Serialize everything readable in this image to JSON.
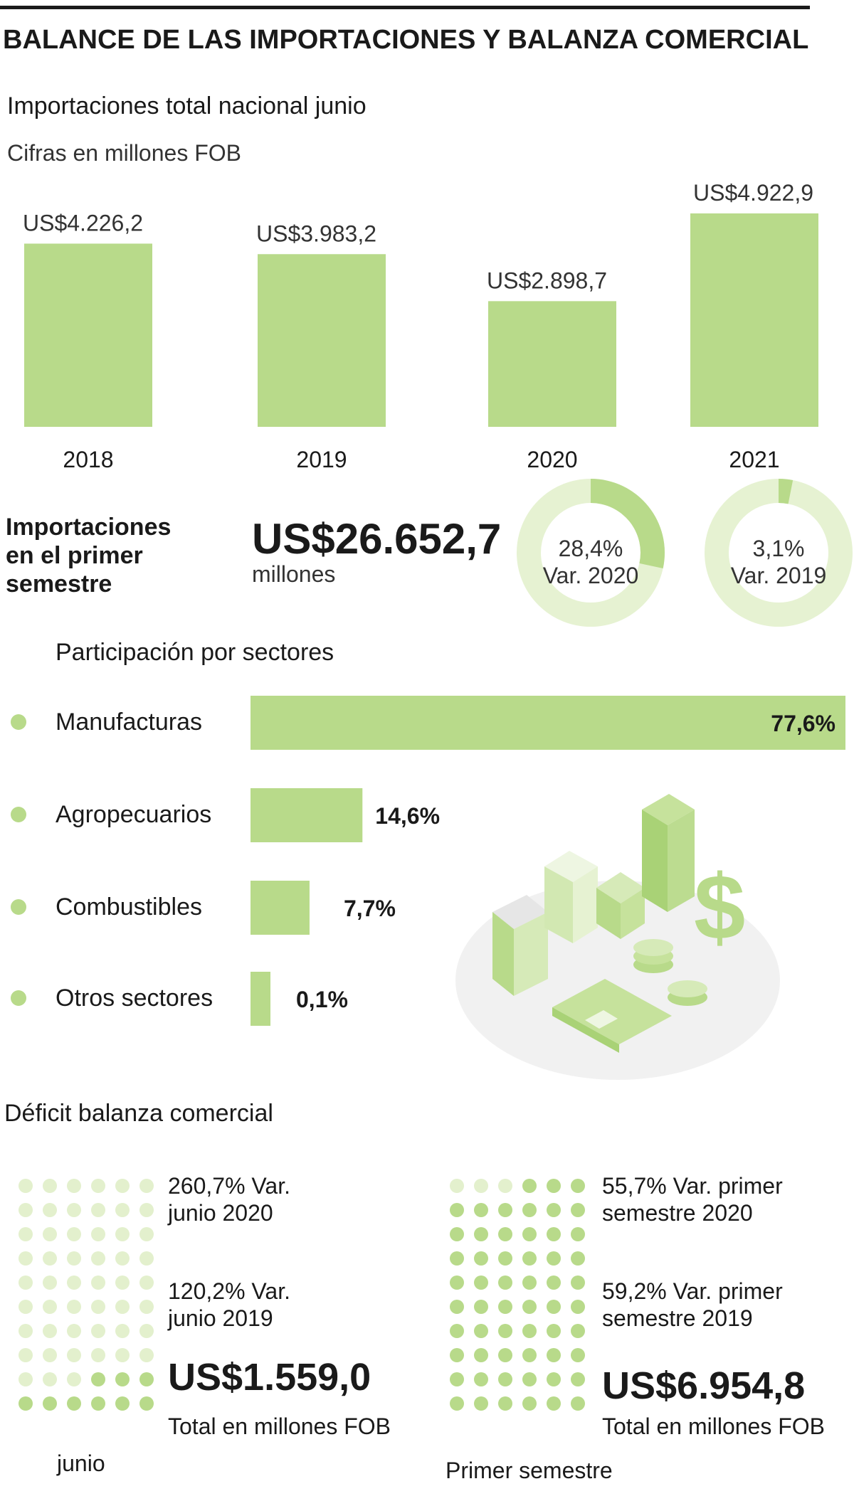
{
  "header": {
    "title": "BALANCE DE LAS IMPORTACIONES Y BALANZA COMERCIAL"
  },
  "imports_june": {
    "title": "Importaciones total nacional junio",
    "subtitle": "Cifras en millones FOB"
  },
  "semester": {
    "label_line1": "Importaciones",
    "label_line2": "en el primer",
    "label_line3": "semestre",
    "total": "US$26.652,7",
    "unit": "millones",
    "donut_2020": {
      "value": 28.4,
      "pct_label": "28,4%",
      "var_label": "Var. 2020"
    },
    "donut_2019": {
      "value": 3.1,
      "pct_label": "3,1%",
      "var_label": "Var. 2019"
    }
  },
  "sectors": {
    "title": "Participación por sectores"
  },
  "deficit": {
    "title": "Déficit balanza comercial",
    "junio": {
      "var1_line1": "260,7% Var.",
      "var1_line2": "junio 2020",
      "var2_line1": "120,2% Var.",
      "var2_line2": "junio 2019",
      "total": "US$1.559,0",
      "total_label": "Total en millones FOB",
      "caption": "junio",
      "dots_filled": 9,
      "dots_total": 60
    },
    "semestre": {
      "var1_line1": "55,7% Var. primer",
      "var1_line2": "semestre 2020",
      "var2_line1": "59,2% Var. primer",
      "var2_line2": "semestre 2019",
      "total": "US$6.954,8",
      "total_label": "Total en millones FOB",
      "caption": "Primer semestre",
      "dots_filled": 57,
      "dots_total": 60
    }
  },
  "colors": {
    "bar": "#b8da8a",
    "bar_light": "#e6f2d2",
    "dot_light": "#e3f0cd",
    "illustration_base": "#f0f0f0",
    "text": "#1a1a1a"
  },
  "chart_data": [
    {
      "type": "bar",
      "title": "Importaciones total nacional junio",
      "subtitle": "Cifras en millones FOB",
      "categories": [
        "2018",
        "2019",
        "2020",
        "2021"
      ],
      "values": [
        4226.2,
        3983.2,
        2898.7,
        4922.9
      ],
      "value_labels": [
        "US$4.226,2",
        "US$3.983,2",
        "US$2.898,7",
        "US$4.922,9"
      ],
      "ylim": [
        0,
        4922.9
      ]
    },
    {
      "type": "bar",
      "orientation": "horizontal",
      "title": "Participación por sectores",
      "categories": [
        "Manufacturas",
        "Agropecuarios",
        "Combustibles",
        "Otros sectores"
      ],
      "values": [
        77.6,
        14.6,
        7.7,
        0.1
      ],
      "value_labels": [
        "77,6%",
        "14,6%",
        "7,7%",
        "0,1%"
      ]
    }
  ]
}
